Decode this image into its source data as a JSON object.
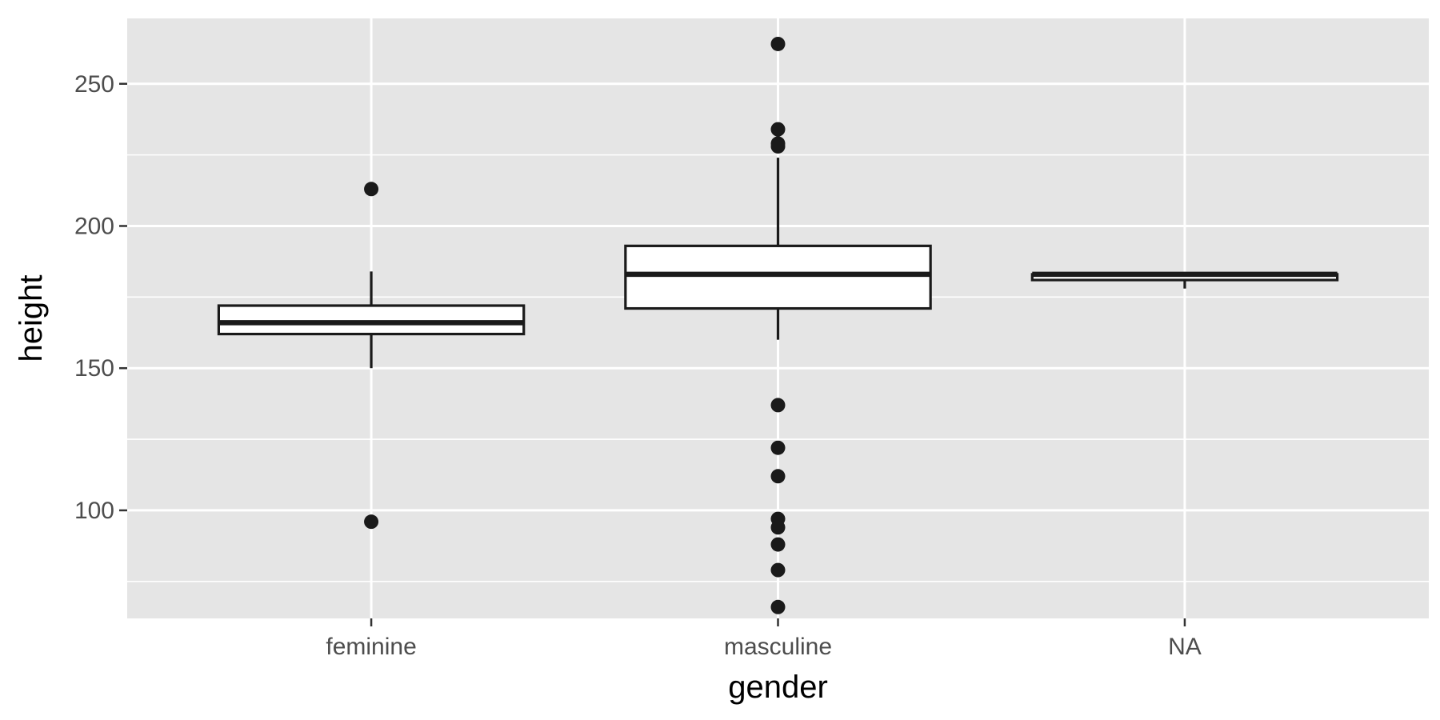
{
  "chart_data": {
    "type": "boxplot",
    "title": "",
    "xlabel": "gender",
    "ylabel": "height",
    "ylim": [
      62,
      273
    ],
    "y_ticks": [
      100,
      150,
      200,
      250
    ],
    "y_tick_labels": [
      "100",
      "150",
      "200",
      "250"
    ],
    "y_minor_ticks": [
      75,
      125,
      175,
      225
    ],
    "grid": true,
    "legend": "none",
    "categories": [
      "feminine",
      "masculine",
      "NA"
    ],
    "boxes": [
      {
        "category": "feminine",
        "whisker_low": 150,
        "q1": 162,
        "median": 166,
        "q3": 172,
        "whisker_high": 184,
        "outliers": [
          213,
          96
        ]
      },
      {
        "category": "masculine",
        "whisker_low": 160,
        "q1": 171,
        "median": 183,
        "q3": 193,
        "whisker_high": 224,
        "outliers": [
          264,
          234,
          229,
          228,
          137,
          122,
          112,
          97,
          94,
          88,
          79,
          66
        ]
      },
      {
        "category": "NA",
        "whisker_low": 178,
        "q1": 181,
        "median": 183,
        "q3": 183,
        "whisker_high": 183,
        "outliers": []
      }
    ],
    "colors": {
      "panel_background": "#e5e5e5",
      "grid_line": "#ffffff",
      "box_fill": "#ffffff",
      "box_stroke": "#1a1a1a",
      "outlier": "#1a1a1a",
      "tick_label": "#4d4d4d",
      "axis_title": "#000000"
    }
  }
}
